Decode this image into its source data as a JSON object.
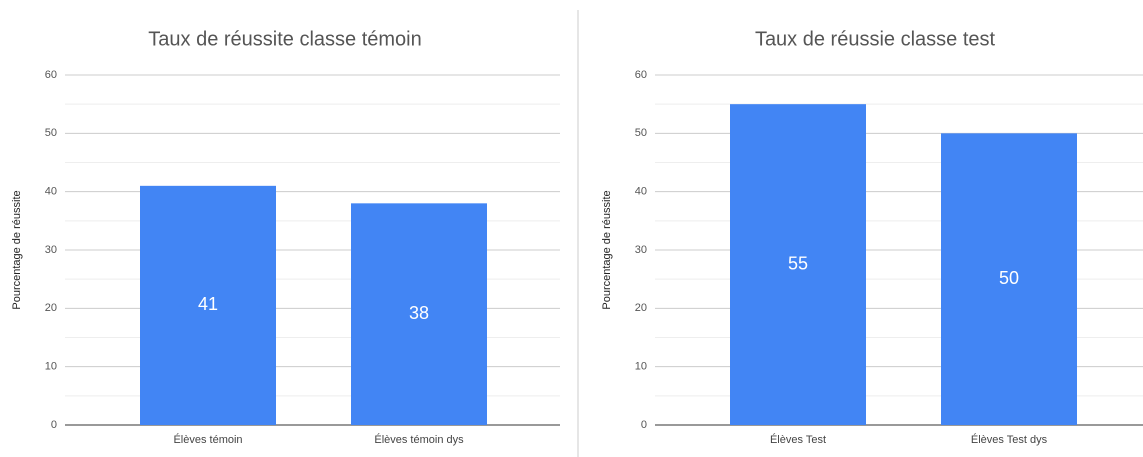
{
  "chart_data": [
    {
      "type": "bar",
      "title": "Taux de réussite classe témoin",
      "y_axis_label": "Pourcentage de réussite",
      "categories": [
        "Élèves témoin",
        "Élèves témoin dys"
      ],
      "values": [
        41,
        38
      ],
      "color": "#4285f4",
      "ylim": [
        0,
        60
      ],
      "yticks": [
        0,
        10,
        20,
        30,
        40,
        50,
        60
      ],
      "minor_yticks": [
        5,
        15,
        25,
        35,
        45,
        55
      ],
      "grid": true
    },
    {
      "type": "bar",
      "title": "Taux de réussie classe test",
      "y_axis_label": "Pourcentage de réussite",
      "categories": [
        "Élèves Test",
        "Élèves Test dys"
      ],
      "values": [
        55,
        50
      ],
      "color": "#4285f4",
      "ylim": [
        0,
        60
      ],
      "yticks": [
        0,
        10,
        20,
        30,
        40,
        50,
        60
      ],
      "minor_yticks": [
        5,
        15,
        25,
        35,
        45,
        55
      ],
      "grid": true
    }
  ]
}
